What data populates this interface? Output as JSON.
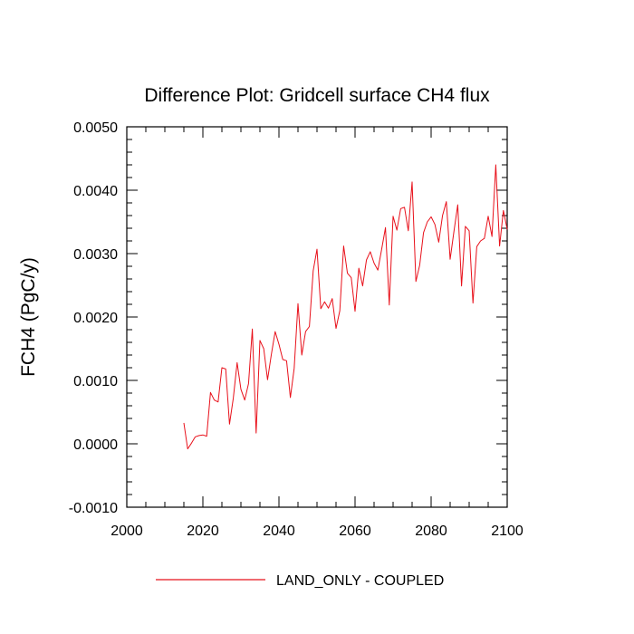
{
  "chart_data": {
    "type": "line",
    "title": "Difference Plot: Gridcell surface CH4 flux",
    "xlabel": "",
    "ylabel": "FCH4  (PgC/y)",
    "xlim": [
      2000,
      2100
    ],
    "ylim": [
      -0.001,
      0.005
    ],
    "xticks": [
      2000,
      2020,
      2040,
      2060,
      2080,
      2100
    ],
    "xtick_labels": [
      "2000",
      "2020",
      "2040",
      "2060",
      "2080",
      "2100"
    ],
    "yticks": [
      -0.001,
      0,
      0.001,
      0.002,
      0.003,
      0.004,
      0.005
    ],
    "ytick_labels": [
      "-0.0010",
      "0.0000",
      "0.0010",
      "0.0020",
      "0.0030",
      "0.0040",
      "0.0050"
    ],
    "grid": false,
    "legend_position": "bottom-center",
    "series": [
      {
        "name": "LAND_ONLY - COUPLED",
        "color": "#e8101a",
        "x": [
          2015,
          2016,
          2017,
          2018,
          2019,
          2020,
          2021,
          2022,
          2023,
          2024,
          2025,
          2026,
          2027,
          2028,
          2029,
          2030,
          2031,
          2032,
          2033,
          2034,
          2035,
          2036,
          2037,
          2038,
          2039,
          2040,
          2041,
          2042,
          2043,
          2044,
          2045,
          2046,
          2047,
          2048,
          2049,
          2050,
          2051,
          2052,
          2053,
          2054,
          2055,
          2056,
          2057,
          2058,
          2059,
          2060,
          2061,
          2062,
          2063,
          2064,
          2065,
          2066,
          2067,
          2068,
          2069,
          2070,
          2071,
          2072,
          2073,
          2074,
          2075,
          2076,
          2077,
          2078,
          2079,
          2080,
          2081,
          2082,
          2083,
          2084,
          2085,
          2086,
          2087,
          2088,
          2089,
          2090,
          2091,
          2092,
          2093,
          2094,
          2095,
          2096,
          2097,
          2098,
          2099,
          2100
        ],
        "y": [
          0.00033,
          -8e-05,
          1e-05,
          0.00011,
          0.00013,
          0.00014,
          0.00012,
          0.00081,
          0.00069,
          0.00066,
          0.0012,
          0.00118,
          0.00031,
          0.00072,
          0.00128,
          0.00086,
          0.00069,
          0.00095,
          0.00181,
          0.00017,
          0.00163,
          0.0015,
          0.00101,
          0.00141,
          0.00177,
          0.00157,
          0.00133,
          0.00131,
          0.00073,
          0.00119,
          0.00221,
          0.0014,
          0.00177,
          0.00185,
          0.00273,
          0.00307,
          0.00213,
          0.00224,
          0.00214,
          0.00229,
          0.00182,
          0.0021,
          0.00312,
          0.00269,
          0.00262,
          0.00209,
          0.00277,
          0.00249,
          0.0029,
          0.00303,
          0.00285,
          0.00274,
          0.00307,
          0.00341,
          0.00219,
          0.00359,
          0.00337,
          0.00371,
          0.00373,
          0.00336,
          0.00413,
          0.00256,
          0.00282,
          0.00333,
          0.0035,
          0.00358,
          0.00346,
          0.00318,
          0.0036,
          0.00382,
          0.00291,
          0.00335,
          0.00377,
          0.00249,
          0.00343,
          0.00336,
          0.00222,
          0.00311,
          0.0032,
          0.00324,
          0.00359,
          0.00327,
          0.0044,
          0.00312,
          0.00368,
          0.00338
        ]
      }
    ]
  }
}
